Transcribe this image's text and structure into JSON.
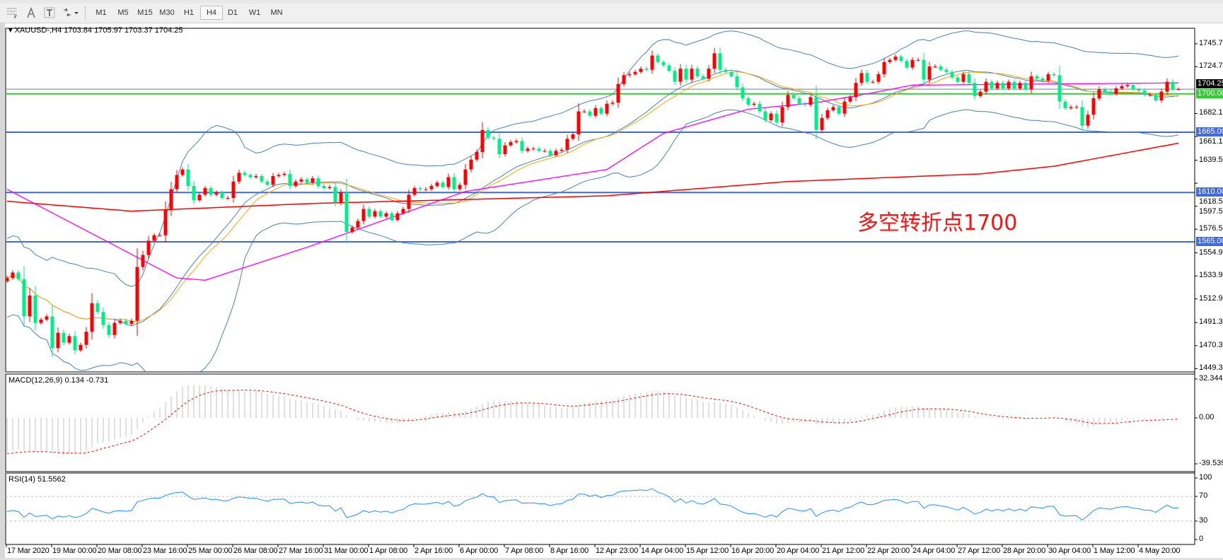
{
  "toolbar": {
    "icons": [
      "grid-icon",
      "text-A-icon",
      "text-label-icon",
      "arrows-icon"
    ],
    "timeframes": [
      "M1",
      "M5",
      "M15",
      "M30",
      "H1",
      "H4",
      "D1",
      "W1",
      "MN"
    ],
    "active_timeframe": "H4"
  },
  "header": {
    "symbol": "XAUUSD-,H4",
    "ohlc": "1703.84 1705.97 1703.37 1704.25"
  },
  "annotation": "多空转折点1700",
  "colors": {
    "bull_candle": "#ff0000",
    "bear_candle": "#00ee88",
    "bollinger": "#4682b4",
    "ma_orange": "#ffa500",
    "ma_magenta": "#ff00ff",
    "ma_red": "#ff0000",
    "support_line": "#4169e1",
    "pivot_line": "#32cd32",
    "rsi": "#1e90ff",
    "macd_hist": "#c0c0c0",
    "macd_signal": "#ff0000"
  },
  "price_axis": {
    "ticks": [
      "1745.70",
      "1724.70",
      "1682.10",
      "1661.10",
      "1639.50",
      "1618.50",
      "1597.50",
      "1576.50",
      "1554.90",
      "1533.90",
      "1512.90",
      "1491.30",
      "1470.30",
      "1449.30"
    ],
    "current_price": "1704.25"
  },
  "horizontal_lines": [
    {
      "price": 1700.0,
      "label": "1700.00",
      "color": "#32cd32"
    },
    {
      "price": 1665.0,
      "label": "1665.00",
      "color": "#4169e1"
    },
    {
      "price": 1610.0,
      "label": "1610.00",
      "color": "#4169e1"
    },
    {
      "price": 1565.0,
      "label": "1565.00",
      "color": "#4169e1"
    }
  ],
  "candles": {
    "last_ohlc": [
      1703.84,
      1705.97,
      1703.37,
      1704.25
    ],
    "closes": [
      1532,
      1537,
      1531,
      1497,
      1516,
      1491,
      1494,
      1497,
      1468,
      1482,
      1473,
      1479,
      1466,
      1471,
      1483,
      1509,
      1501,
      1489,
      1480,
      1491,
      1493,
      1490,
      1493,
      1542,
      1553,
      1566,
      1571,
      1571,
      1594,
      1613,
      1626,
      1631,
      1616,
      1603,
      1608,
      1614,
      1608,
      1610,
      1605,
      1605,
      1620,
      1628,
      1626,
      1624,
      1625,
      1620,
      1617,
      1625,
      1626,
      1627,
      1616,
      1620,
      1622,
      1619,
      1623,
      1616,
      1614,
      1615,
      1601,
      1610,
      1574,
      1578,
      1584,
      1595,
      1588,
      1593,
      1588,
      1591,
      1585,
      1591,
      1595,
      1608,
      1614,
      1613,
      1613,
      1616,
      1619,
      1615,
      1624,
      1613,
      1617,
      1631,
      1640,
      1647,
      1667,
      1660,
      1659,
      1645,
      1653,
      1656,
      1657,
      1648,
      1650,
      1650,
      1648,
      1648,
      1644,
      1648,
      1649,
      1659,
      1663,
      1684,
      1684,
      1680,
      1687,
      1682,
      1691,
      1692,
      1709,
      1717,
      1718,
      1720,
      1723,
      1722,
      1735,
      1729,
      1726,
      1721,
      1711,
      1723,
      1713,
      1723,
      1716,
      1714,
      1723,
      1737,
      1722,
      1720,
      1716,
      1706,
      1696,
      1690,
      1691,
      1684,
      1676,
      1682,
      1674,
      1688,
      1699,
      1696,
      1691,
      1690,
      1697,
      1667,
      1678,
      1685,
      1688,
      1682,
      1693,
      1697,
      1710,
      1719,
      1711,
      1711,
      1718,
      1729,
      1731,
      1734,
      1730,
      1724,
      1731,
      1731,
      1713,
      1725,
      1725,
      1722,
      1720,
      1715,
      1711,
      1718,
      1710,
      1698,
      1702,
      1711,
      1705,
      1710,
      1705,
      1711,
      1705,
      1710,
      1704,
      1716,
      1714,
      1712,
      1718,
      1717,
      1693,
      1687,
      1688,
      1688,
      1671,
      1681,
      1696,
      1704,
      1702,
      1700,
      1705,
      1707,
      1708,
      1704,
      1703,
      1699,
      1699,
      1694,
      1702,
      1711,
      1704,
      1704.25
    ]
  },
  "ma_lines": {
    "magenta": [
      [
        0,
        1613
      ],
      [
        30,
        1532
      ],
      [
        35,
        1530
      ],
      [
        53,
        1560
      ],
      [
        81,
        1611
      ],
      [
        106,
        1631
      ],
      [
        116,
        1664
      ],
      [
        131,
        1686
      ],
      [
        143,
        1692
      ],
      [
        153,
        1701
      ],
      [
        160,
        1708
      ],
      [
        207,
        1710
      ]
    ],
    "red": [
      [
        0,
        1602
      ],
      [
        22,
        1593
      ],
      [
        54,
        1600
      ],
      [
        106,
        1607
      ],
      [
        138,
        1620
      ],
      [
        172,
        1627
      ],
      [
        185,
        1634
      ],
      [
        207,
        1655
      ]
    ]
  },
  "macd": {
    "label": "MACD(12,26,9) 0.134 -0.731",
    "axis": [
      "32.344",
      "0.00",
      "-39.539"
    ],
    "range": [
      -39.539,
      32.344
    ]
  },
  "rsi": {
    "label": "RSI(14) 51.5562",
    "axis": [
      "100",
      "70",
      "30",
      "0"
    ],
    "levels": [
      70,
      30
    ]
  },
  "time_axis": [
    "17 Mar 2020",
    "19 Mar 00:00",
    "20 Mar 08:00",
    "23 Mar 16:00",
    "25 Mar 00:00",
    "26 Mar 08:00",
    "27 Mar 16:00",
    "31 Mar 00:00",
    "1 Apr 08:00",
    "2 Apr 16:00",
    "6 Apr 00:00",
    "7 Apr 08:00",
    "8 Apr 16:00",
    "12 Apr 23:00",
    "14 Apr 04:00",
    "15 Apr 12:00",
    "16 Apr 20:00",
    "20 Apr 04:00",
    "21 Apr 12:00",
    "22 Apr 20:00",
    "24 Apr 04:00",
    "27 Apr 12:00",
    "28 Apr 20:00",
    "30 Apr 04:00",
    "1 May 12:00",
    "4 May 20:00"
  ]
}
